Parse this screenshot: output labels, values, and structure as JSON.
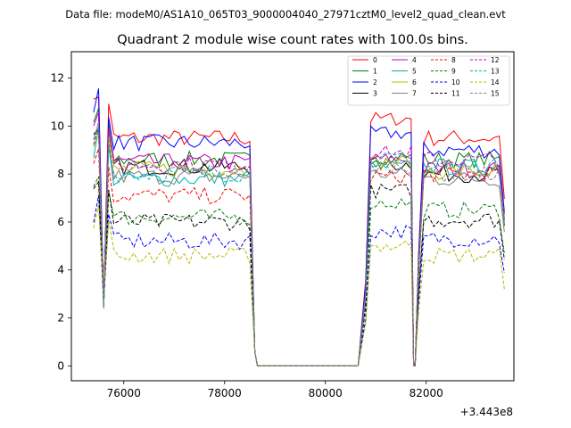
{
  "header": {
    "data_file": "Data file: modeM0/AS1A10_065T03_9000004040_27971cztM0_level2_quad_clean.evt"
  },
  "chart_data": {
    "type": "line",
    "title": "Quadrant 2 module wise count rates with 100.0s bins.",
    "xlabel": "",
    "ylabel": "",
    "x_offset_label": "+3.443e8",
    "xlim": [
      74960,
      83740
    ],
    "ylim": [
      -0.62,
      13.1
    ],
    "x_ticks": [
      76000,
      78000,
      80000,
      82000
    ],
    "x_tick_labels": [
      "76000",
      "78000",
      "80000",
      "82000"
    ],
    "y_ticks": [
      0,
      2,
      4,
      6,
      8,
      10,
      12
    ],
    "y_tick_labels": [
      "0",
      "2",
      "4",
      "6",
      "8",
      "10",
      "12"
    ],
    "legend_position": "top-right",
    "gaps": [],
    "bins": {
      "seg1_start": 75400,
      "seg1_end": 78500,
      "seg1_zero_end": 80700,
      "seg2_start": 80700,
      "seg2_end": 81700,
      "seg3_start": 81800,
      "seg3_end": 83600,
      "step": 100
    },
    "series": [
      {
        "name": "0",
        "color": "#ff0000",
        "dash": "solid",
        "level": 9.5,
        "seg2": 10.3,
        "seg3": 9.5
      },
      {
        "name": "1",
        "color": "#008000",
        "dash": "solid",
        "level": 8.6,
        "seg2": 8.7,
        "seg3": 8.6
      },
      {
        "name": "2",
        "color": "#0000ff",
        "dash": "solid",
        "level": 9.3,
        "seg2": 9.7,
        "seg3": 9.0
      },
      {
        "name": "3",
        "color": "#000000",
        "dash": "solid",
        "level": 8.3,
        "seg2": 8.4,
        "seg3": 8.0
      },
      {
        "name": "4",
        "color": "#c000c0",
        "dash": "solid",
        "level": 8.5,
        "seg2": 8.6,
        "seg3": 8.2
      },
      {
        "name": "5",
        "color": "#00b0b0",
        "dash": "solid",
        "level": 7.8,
        "seg2": 8.3,
        "seg3": 8.3
      },
      {
        "name": "6",
        "color": "#b8b800",
        "dash": "solid",
        "level": 8.2,
        "seg2": 8.5,
        "seg3": 8.1
      },
      {
        "name": "7",
        "color": "#808080",
        "dash": "solid",
        "level": 7.9,
        "seg2": 8.0,
        "seg3": 7.8
      },
      {
        "name": "8",
        "color": "#ff0000",
        "dash": "dashed",
        "level": 7.1,
        "seg2": 7.9,
        "seg3": 8.0
      },
      {
        "name": "9",
        "color": "#008000",
        "dash": "dashed",
        "level": 6.2,
        "seg2": 6.8,
        "seg3": 6.5
      },
      {
        "name": "10",
        "color": "#0000ff",
        "dash": "dashed",
        "level": 5.2,
        "seg2": 5.6,
        "seg3": 5.3
      },
      {
        "name": "11",
        "color": "#000000",
        "dash": "dashed",
        "level": 6.0,
        "seg2": 7.3,
        "seg3": 6.1
      },
      {
        "name": "12",
        "color": "#c000c0",
        "dash": "dashed",
        "level": 8.4,
        "seg2": 8.9,
        "seg3": 8.6
      },
      {
        "name": "13",
        "color": "#00b0b0",
        "dash": "dashed",
        "level": 8.0,
        "seg2": 8.6,
        "seg3": 8.3
      },
      {
        "name": "14",
        "color": "#b8b800",
        "dash": "dashed",
        "level": 4.6,
        "seg2": 5.0,
        "seg3": 4.6
      },
      {
        "name": "15",
        "color": "#808080",
        "dash": "dashed",
        "level": 8.1,
        "seg2": 8.3,
        "seg3": 8.0
      }
    ]
  }
}
